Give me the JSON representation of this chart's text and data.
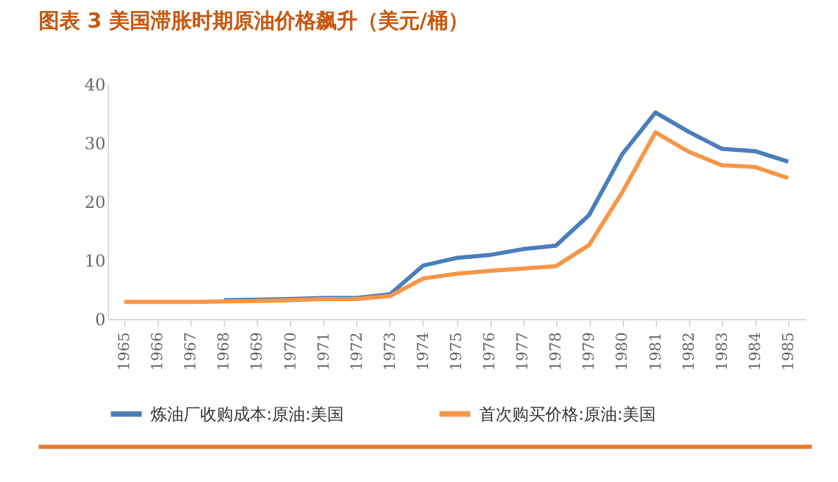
{
  "chart_data": {
    "type": "line",
    "title": "图表 3 美国滞胀时期原油价格飙升（美元/桶）",
    "categories": [
      "1965",
      "1966",
      "1967",
      "1968",
      "1969",
      "1970",
      "1971",
      "1972",
      "1973",
      "1974",
      "1975",
      "1976",
      "1977",
      "1978",
      "1979",
      "1980",
      "1981",
      "1982",
      "1983",
      "1984",
      "1985"
    ],
    "series": [
      {
        "name": "炼油厂收购成本:原油:美国",
        "color": "#4a7ebb",
        "values": [
          null,
          null,
          null,
          3.2,
          3.3,
          3.4,
          3.6,
          3.6,
          4.2,
          9.1,
          10.4,
          10.9,
          11.9,
          12.5,
          17.7,
          28.1,
          35.2,
          31.9,
          29.0,
          28.6,
          26.8
        ]
      },
      {
        "name": "首次购买价格:原油:美国",
        "color": "#f79646",
        "values": [
          2.9,
          2.9,
          2.9,
          3.0,
          3.1,
          3.2,
          3.4,
          3.4,
          3.9,
          6.9,
          7.7,
          8.2,
          8.6,
          9.0,
          12.6,
          21.6,
          31.8,
          28.5,
          26.2,
          25.9,
          24.0
        ]
      }
    ],
    "ylim": [
      0,
      40
    ],
    "yticks": [
      0,
      10,
      20,
      30,
      40
    ],
    "grid": false,
    "legend": "bottom",
    "marker": "none",
    "line_style": "solid"
  }
}
